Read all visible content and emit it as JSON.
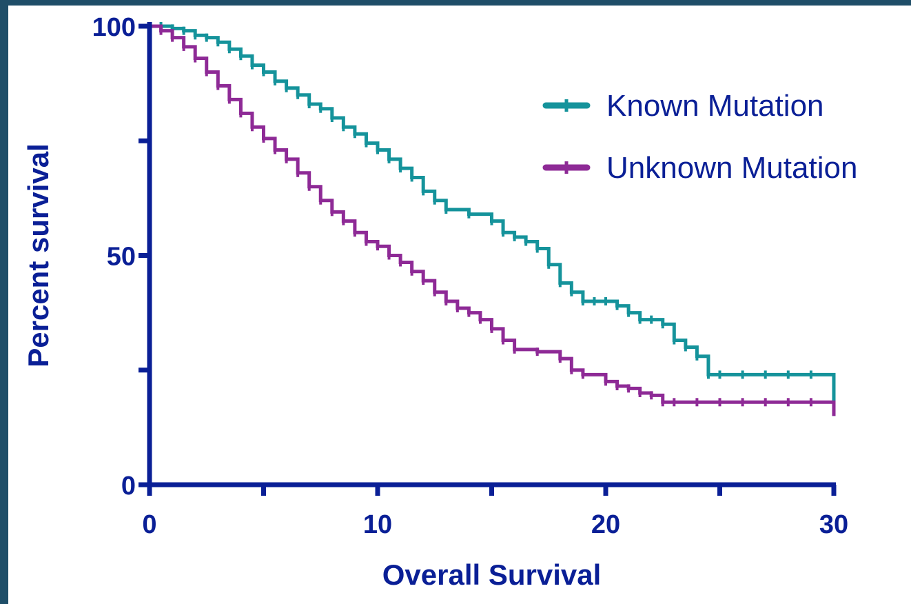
{
  "chart_data": {
    "type": "line",
    "title": "",
    "xlabel": "Overall Survival",
    "ylabel": "Percent survival",
    "xlim": [
      0,
      30
    ],
    "ylim": [
      0,
      100
    ],
    "x_ticks": [
      0,
      10,
      20,
      30
    ],
    "x_minor_ticks": [
      5,
      15,
      25
    ],
    "y_ticks": [
      0,
      50,
      100
    ],
    "y_minor_ticks": [
      25,
      75
    ],
    "grid": false,
    "legend_position": "top-right",
    "axis_color": "#0a1f96",
    "series": [
      {
        "name": "Known Mutation",
        "color": "#15939b",
        "step": true,
        "x": [
          0,
          0.5,
          1,
          1.5,
          2,
          2.5,
          3,
          3.5,
          4,
          4.5,
          5,
          5.5,
          6,
          6.5,
          7,
          7.5,
          8,
          8.5,
          9,
          9.5,
          10,
          10.5,
          11,
          11.5,
          12,
          12.5,
          13,
          14,
          15,
          15.5,
          16,
          16.5,
          17,
          17.5,
          18,
          18.5,
          19,
          19.5,
          20,
          20.5,
          21,
          21.5,
          22,
          22.5,
          23,
          23.5,
          24,
          24.5,
          25,
          26,
          27,
          28,
          29,
          30
        ],
        "y": [
          100,
          100,
          99.5,
          99,
          98,
          97.5,
          96.5,
          95,
          93.5,
          91.5,
          90,
          88,
          86.5,
          85,
          83,
          82,
          80,
          78,
          76.5,
          74.5,
          73,
          71,
          69,
          67,
          64,
          62,
          60,
          59,
          57.5,
          55,
          54,
          53,
          51.5,
          48,
          44,
          42,
          40,
          40,
          40,
          39,
          37.5,
          36,
          36,
          35,
          31.5,
          30,
          28,
          24,
          24,
          24,
          24,
          24,
          24,
          15
        ]
      },
      {
        "name": "Unknown Mutation",
        "color": "#8e2a96",
        "step": true,
        "x": [
          0,
          0.5,
          1,
          1.5,
          2,
          2.5,
          3,
          3.5,
          4,
          4.5,
          5,
          5.5,
          6,
          6.5,
          7,
          7.5,
          8,
          8.5,
          9,
          9.5,
          10,
          10.5,
          11,
          11.5,
          12,
          12.5,
          13,
          13.5,
          14,
          14.5,
          15,
          15.5,
          16,
          17,
          18,
          18.5,
          19,
          20,
          20.5,
          21,
          21.5,
          22,
          22.5,
          23,
          24,
          25,
          26,
          27,
          28,
          29,
          30
        ],
        "y": [
          100,
          99,
          97.5,
          95.5,
          93,
          90,
          87,
          84,
          81,
          78,
          75.5,
          73,
          71,
          68,
          65,
          62,
          59.5,
          57.5,
          55,
          53,
          52,
          50,
          48.5,
          46.5,
          44.5,
          42,
          40,
          38.5,
          37.5,
          36,
          34,
          31.5,
          29.5,
          29,
          27.5,
          25,
          24,
          22.5,
          21.5,
          21,
          20,
          19.5,
          18,
          18,
          18,
          18,
          18,
          18,
          18,
          18,
          15
        ]
      }
    ]
  }
}
